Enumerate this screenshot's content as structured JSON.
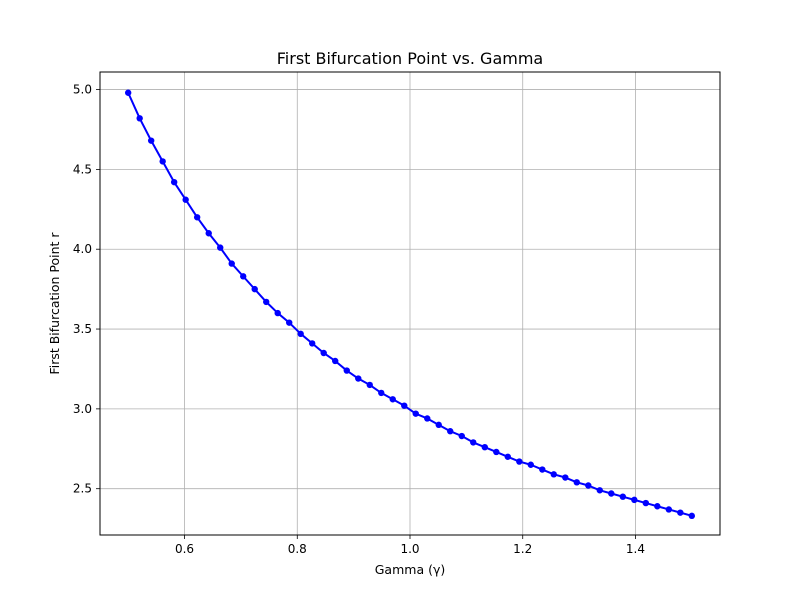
{
  "chart_data": {
    "type": "line",
    "title": "First Bifurcation Point vs. Gamma",
    "xlabel": "Gamma (γ)",
    "ylabel": "First Bifurcation Point r",
    "xlim": [
      0.45,
      1.55
    ],
    "ylim": [
      2.21,
      5.11
    ],
    "xticks": [
      0.6,
      0.8,
      1.0,
      1.2,
      1.4
    ],
    "xtick_labels": [
      "0.6",
      "0.8",
      "1.0",
      "1.2",
      "1.4"
    ],
    "yticks": [
      2.5,
      3.0,
      3.5,
      4.0,
      4.5,
      5.0
    ],
    "ytick_labels": [
      "2.5",
      "3.0",
      "3.5",
      "4.0",
      "4.5",
      "5.0"
    ],
    "grid": true,
    "series": [
      {
        "name": "first bifurcation point",
        "color": "#0000ff",
        "x": [
          0.5,
          0.5204,
          0.5408,
          0.5612,
          0.5816,
          0.602,
          0.6224,
          0.6429,
          0.6633,
          0.6837,
          0.7041,
          0.7245,
          0.7449,
          0.7653,
          0.7857,
          0.8061,
          0.8265,
          0.8469,
          0.8673,
          0.8878,
          0.9082,
          0.9286,
          0.949,
          0.9694,
          0.9898,
          1.0102,
          1.0306,
          1.051,
          1.0714,
          1.0918,
          1.1122,
          1.1327,
          1.1531,
          1.1735,
          1.1939,
          1.2143,
          1.2347,
          1.2551,
          1.2755,
          1.2959,
          1.3163,
          1.3367,
          1.3571,
          1.3776,
          1.398,
          1.4184,
          1.4388,
          1.4592,
          1.4796,
          1.5
        ],
        "y": [
          4.98,
          4.82,
          4.68,
          4.55,
          4.42,
          4.31,
          4.2,
          4.1,
          4.01,
          3.91,
          3.83,
          3.75,
          3.67,
          3.6,
          3.54,
          3.47,
          3.41,
          3.35,
          3.3,
          3.24,
          3.19,
          3.15,
          3.1,
          3.06,
          3.02,
          2.97,
          2.94,
          2.9,
          2.86,
          2.83,
          2.79,
          2.76,
          2.73,
          2.7,
          2.67,
          2.65,
          2.62,
          2.59,
          2.57,
          2.54,
          2.52,
          2.49,
          2.47,
          2.45,
          2.43,
          2.41,
          2.39,
          2.37,
          2.35,
          2.33
        ]
      }
    ]
  }
}
